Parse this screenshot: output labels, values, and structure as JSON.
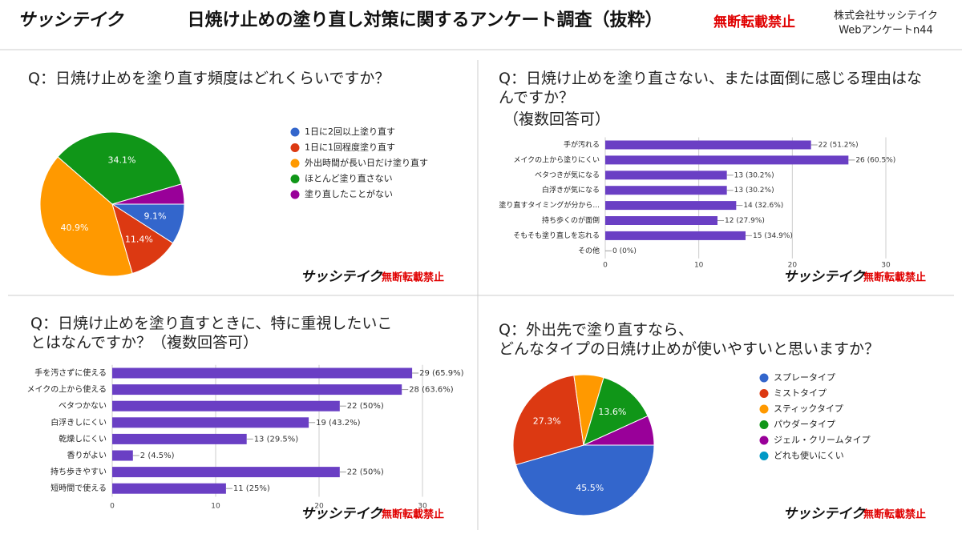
{
  "header": {
    "logo": "サッシテイク",
    "title": "日焼け止めの塗り直し対策に関するアンケート調査（抜粋）",
    "notice": "無断転載禁止",
    "company": "株式会社サッシテイク",
    "survey": "Webアンケートn44"
  },
  "chart_data": [
    {
      "type": "pie",
      "title": "Q：日焼け止めを塗り直す頻度はどれくらいですか？",
      "categories": [
        "1日に2回以上塗り直す",
        "1日に1回程度塗り直す",
        "外出時間が長い日だけ塗り直す",
        "ほとんど塗り直さない",
        "塗り直したことがない"
      ],
      "values": [
        9.1,
        11.4,
        40.9,
        34.1,
        4.5
      ],
      "value_labels": [
        "9.1%",
        "11.4%",
        "40.9%",
        "34.1%",
        null
      ],
      "colors": [
        "#3366cc",
        "#dc3912",
        "#ff9900",
        "#109618",
        "#990099"
      ]
    },
    {
      "type": "bar",
      "title": "Q：日焼け止めを塗り直さない、または面倒に感じる理由はなんですか？",
      "subtitle": "（複数回答可）",
      "categories": [
        "手が汚れる",
        "メイクの上から塗りにくい",
        "ベタつきが気になる",
        "白浮きが気になる",
        "塗り直すタイミングが分から...",
        "持ち歩くのが面倒",
        "そもそも塗り直しを忘れる",
        "その他"
      ],
      "values": [
        22,
        26,
        13,
        13,
        14,
        12,
        15,
        0
      ],
      "value_labels": [
        "22 (51.2%)",
        "26 (60.5%)",
        "13 (30.2%)",
        "13 (30.2%)",
        "14 (32.6%)",
        "12 (27.9%)",
        "15 (34.9%)",
        "0 (0%)"
      ],
      "color": "#6a3fc4",
      "xlim": [
        0,
        30
      ],
      "xticks": [
        0,
        10,
        20,
        30
      ],
      "grid": true
    },
    {
      "type": "bar",
      "title": "Q：日焼け止めを塗り直すときに、特に重視したいことはなんですか？（複数回答可）",
      "categories": [
        "手を汚さずに使える",
        "メイクの上から使える",
        "ベタつかない",
        "白浮きしにくい",
        "乾燥しにくい",
        "香りがよい",
        "持ち歩きやすい",
        "短時間で使える"
      ],
      "values": [
        29,
        28,
        22,
        19,
        13,
        2,
        22,
        11
      ],
      "value_labels": [
        "29 (65.9%)",
        "28 (63.6%)",
        "22 (50%)",
        "19 (43.2%)",
        "13 (29.5%)",
        "2 (4.5%)",
        "22 (50%)",
        "11 (25%)"
      ],
      "color": "#6a3fc4",
      "xlim": [
        0,
        30
      ],
      "xticks": [
        0,
        10,
        20,
        30
      ],
      "grid": true
    },
    {
      "type": "pie",
      "title": "Q：外出先で塗り直すなら、\nどんなタイプの日焼け止めが使いやすいと思いますか？",
      "categories": [
        "スプレータイプ",
        "ミストタイプ",
        "スティックタイプ",
        "パウダータイプ",
        "ジェル・クリームタイプ",
        "どれも使いにくい"
      ],
      "values": [
        45.5,
        27.3,
        6.8,
        13.6,
        6.8,
        0
      ],
      "value_labels": [
        "45.5%",
        "27.3%",
        null,
        "13.6%",
        null,
        null
      ],
      "colors": [
        "#3366cc",
        "#dc3912",
        "#ff9900",
        "#109618",
        "#990099",
        "#0099c6"
      ]
    }
  ]
}
